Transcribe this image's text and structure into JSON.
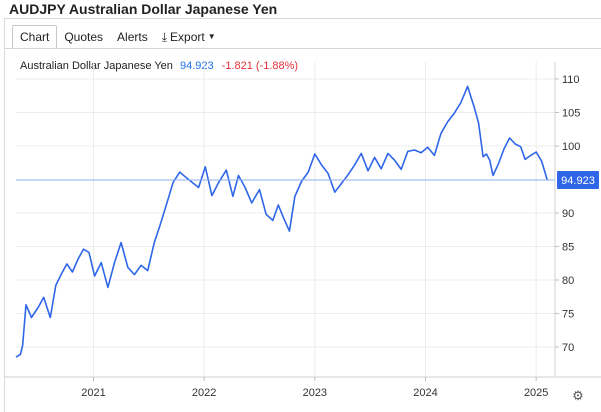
{
  "page": {
    "title": "AUDJPY Australian Dollar Japanese Yen"
  },
  "tabs": [
    {
      "label": "Chart",
      "active": true
    },
    {
      "label": "Quotes",
      "active": false
    },
    {
      "label": "Alerts",
      "active": false
    },
    {
      "label": "Export",
      "active": false,
      "icon": "download-icon"
    }
  ],
  "legend": {
    "name": "Australian Dollar Japanese Yen",
    "price": "94.923",
    "change": "-1.821 (-1.88%)"
  },
  "colors": {
    "line": "#2f66e8",
    "last_price_badge": "#2f66e8",
    "negative": "#e5343a",
    "grid": "#ececec"
  },
  "settings_icon": "gear-icon",
  "chart_data": {
    "type": "line",
    "series": [
      {
        "name": "Australian Dollar Japanese Yen",
        "x": [
          2020.3,
          2020.34,
          2020.36,
          2020.39,
          2020.44,
          2020.5,
          2020.55,
          2020.61,
          2020.66,
          2020.71,
          2020.76,
          2020.81,
          2020.86,
          2020.91,
          2020.96,
          2021.01,
          2021.07,
          2021.13,
          2021.19,
          2021.25,
          2021.31,
          2021.37,
          2021.43,
          2021.49,
          2021.55,
          2021.6,
          2021.66,
          2021.72,
          2021.78,
          2021.83,
          2021.89,
          2021.95,
          2022.01,
          2022.07,
          2022.13,
          2022.2,
          2022.26,
          2022.31,
          2022.37,
          2022.43,
          2022.5,
          2022.56,
          2022.62,
          2022.67,
          2022.72,
          2022.77,
          2022.82,
          2022.88,
          2022.94,
          2023.0,
          2023.06,
          2023.12,
          2023.18,
          2023.24,
          2023.3,
          2023.36,
          2023.42,
          2023.48,
          2023.54,
          2023.6,
          2023.66,
          2023.72,
          2023.78,
          2023.84,
          2023.9,
          2023.96,
          2024.02,
          2024.08,
          2024.14,
          2024.2,
          2024.26,
          2024.32,
          2024.38,
          2024.44,
          2024.48,
          2024.52,
          2024.55,
          2024.58,
          2024.61,
          2024.66,
          2024.71,
          2024.76,
          2024.81,
          2024.86,
          2024.9,
          2024.95,
          2025.0,
          2025.05,
          2025.1
        ],
        "values": [
          68.5,
          68.9,
          70.2,
          76.3,
          74.4,
          75.9,
          77.4,
          74.4,
          79.2,
          80.9,
          82.4,
          81.2,
          83.1,
          84.6,
          84.1,
          80.6,
          82.6,
          78.9,
          82.6,
          85.6,
          81.9,
          80.8,
          82.2,
          81.4,
          85.6,
          88.1,
          91.3,
          94.6,
          96.1,
          95.4,
          94.6,
          93.8,
          96.9,
          92.6,
          94.5,
          96.4,
          92.5,
          95.6,
          93.8,
          91.5,
          93.5,
          89.8,
          88.9,
          91.2,
          89.2,
          87.3,
          92.5,
          94.7,
          96.1,
          98.8,
          97.2,
          95.9,
          93.1,
          94.4,
          95.7,
          97.2,
          98.9,
          96.3,
          98.3,
          96.6,
          98.9,
          97.9,
          96.5,
          99.2,
          99.4,
          99.0,
          99.8,
          98.6,
          101.9,
          103.6,
          104.9,
          106.5,
          108.9,
          105.8,
          103.4,
          98.4,
          98.8,
          97.9,
          95.6,
          97.4,
          99.6,
          101.2,
          100.3,
          99.9,
          98.0,
          98.6,
          99.1,
          97.7,
          94.9
        ]
      }
    ],
    "xticks": [
      "2021",
      "2022",
      "2023",
      "2024",
      "2025"
    ],
    "xtick_values": [
      2021.0,
      2022.0,
      2023.0,
      2024.0,
      2025.0
    ],
    "yticks": [
      70,
      75,
      80,
      85,
      90,
      100,
      105,
      110
    ],
    "xlim": [
      2020.3,
      2025.17
    ],
    "ylim": [
      67.0,
      111.8
    ],
    "last_value_label": "94.923",
    "last_value": 94.923,
    "grid": true,
    "ylabel": "",
    "xlabel": ""
  }
}
